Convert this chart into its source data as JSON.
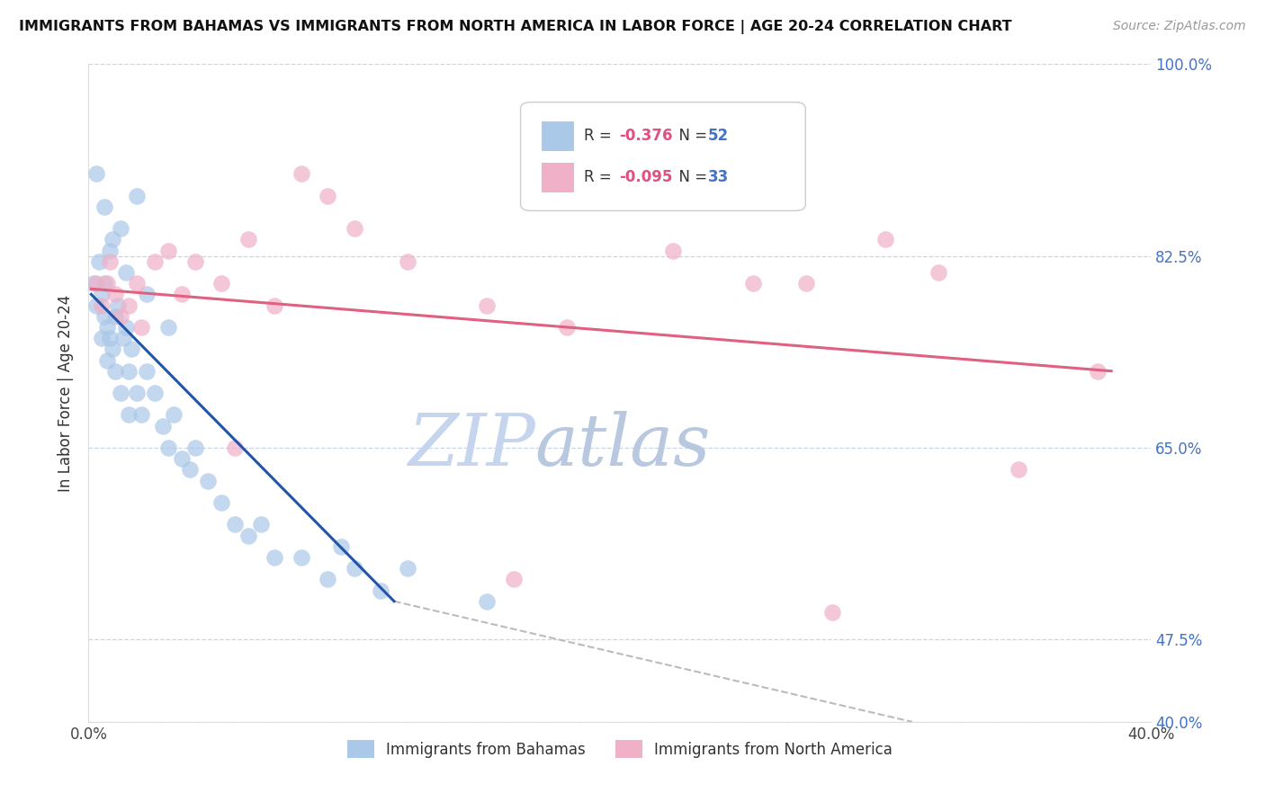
{
  "title": "IMMIGRANTS FROM BAHAMAS VS IMMIGRANTS FROM NORTH AMERICA IN LABOR FORCE | AGE 20-24 CORRELATION CHART",
  "source": "Source: ZipAtlas.com",
  "ylabel": "In Labor Force | Age 20-24",
  "legend_label1": "Immigrants from Bahamas",
  "legend_label2": "Immigrants from North America",
  "R1": -0.376,
  "N1": 52,
  "R2": -0.095,
  "N2": 33,
  "color1": "#aac8e8",
  "color1_line": "#2255aa",
  "color2": "#f0b0c8",
  "color2_line": "#e06080",
  "xlim": [
    0.0,
    0.4
  ],
  "ylim": [
    0.4,
    1.0
  ],
  "ytick_vals": [
    0.4,
    0.475,
    0.65,
    0.825,
    1.0
  ],
  "ytick_labels": [
    "40.0%",
    "47.5%",
    "65.0%",
    "82.5%",
    "100.0%"
  ],
  "watermark_zip": "ZIP",
  "watermark_atlas": "atlas",
  "background_color": "#ffffff",
  "grid_color": "#c8d4e8",
  "title_color": "#111111",
  "source_color": "#999999",
  "watermark_color_zip": "#c8d8f0",
  "watermark_color_atlas": "#c0cce0",
  "right_ytick_color": "#4472c4",
  "blue_scatter_x": [
    0.002,
    0.003,
    0.004,
    0.005,
    0.005,
    0.006,
    0.006,
    0.007,
    0.007,
    0.008,
    0.009,
    0.01,
    0.01,
    0.011,
    0.012,
    0.013,
    0.014,
    0.015,
    0.015,
    0.016,
    0.018,
    0.02,
    0.022,
    0.025,
    0.028,
    0.03,
    0.032,
    0.035,
    0.038,
    0.04,
    0.045,
    0.05,
    0.055,
    0.06,
    0.065,
    0.07,
    0.08,
    0.09,
    0.095,
    0.1,
    0.11,
    0.12,
    0.15,
    0.008,
    0.012,
    0.018,
    0.003,
    0.006,
    0.009,
    0.014,
    0.022,
    0.03
  ],
  "blue_scatter_y": [
    0.8,
    0.78,
    0.82,
    0.75,
    0.79,
    0.77,
    0.8,
    0.76,
    0.73,
    0.75,
    0.74,
    0.77,
    0.72,
    0.78,
    0.7,
    0.75,
    0.76,
    0.72,
    0.68,
    0.74,
    0.7,
    0.68,
    0.72,
    0.7,
    0.67,
    0.65,
    0.68,
    0.64,
    0.63,
    0.65,
    0.62,
    0.6,
    0.58,
    0.57,
    0.58,
    0.55,
    0.55,
    0.53,
    0.56,
    0.54,
    0.52,
    0.54,
    0.51,
    0.83,
    0.85,
    0.88,
    0.9,
    0.87,
    0.84,
    0.81,
    0.79,
    0.76
  ],
  "pink_scatter_x": [
    0.003,
    0.005,
    0.007,
    0.008,
    0.01,
    0.012,
    0.015,
    0.018,
    0.02,
    0.025,
    0.03,
    0.035,
    0.04,
    0.05,
    0.06,
    0.07,
    0.08,
    0.09,
    0.1,
    0.12,
    0.15,
    0.18,
    0.2,
    0.22,
    0.25,
    0.27,
    0.3,
    0.32,
    0.35,
    0.38,
    0.055,
    0.16,
    0.28
  ],
  "pink_scatter_y": [
    0.8,
    0.78,
    0.8,
    0.82,
    0.79,
    0.77,
    0.78,
    0.8,
    0.76,
    0.82,
    0.83,
    0.79,
    0.82,
    0.8,
    0.84,
    0.78,
    0.9,
    0.88,
    0.85,
    0.82,
    0.78,
    0.76,
    0.88,
    0.83,
    0.8,
    0.8,
    0.84,
    0.81,
    0.63,
    0.72,
    0.65,
    0.53,
    0.5
  ],
  "blue_line_x": [
    0.001,
    0.115
  ],
  "blue_line_y": [
    0.79,
    0.51
  ],
  "pink_line_x": [
    0.001,
    0.385
  ],
  "pink_line_y": [
    0.795,
    0.72
  ],
  "dash_line_x": [
    0.115,
    0.31
  ],
  "dash_line_y": [
    0.51,
    0.4
  ]
}
